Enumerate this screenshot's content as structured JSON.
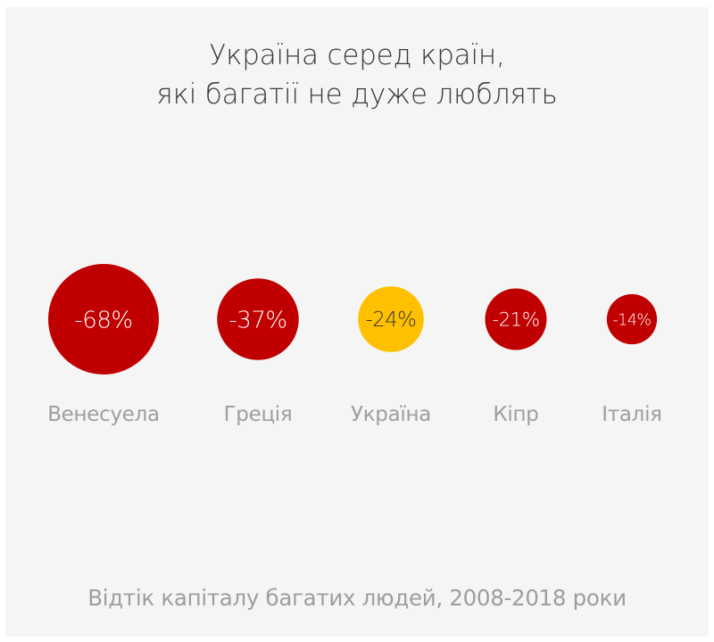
{
  "title": {
    "line1": "Україна серед країн,",
    "line2": "які багатії не дуже люблять"
  },
  "footnote": "Відтік капіталу багатих людей, 2008-2018 роки",
  "colors": {
    "background": "#f5f5f5",
    "default_bubble": "#c00000",
    "highlight_bubble": "#ffc000",
    "label_text": "#9e9e9e",
    "title_text": "#3a3a3a"
  },
  "chart_data": {
    "type": "bubble",
    "categories": [
      "Венесуела",
      "Греція",
      "Україна",
      "Кіпр",
      "Італія"
    ],
    "values": [
      -68,
      -37,
      -24,
      -21,
      -14
    ],
    "value_labels": [
      "-68%",
      "-37%",
      "-24%",
      "-21%",
      "-14%"
    ],
    "highlighted": "Україна",
    "unit": "%"
  }
}
